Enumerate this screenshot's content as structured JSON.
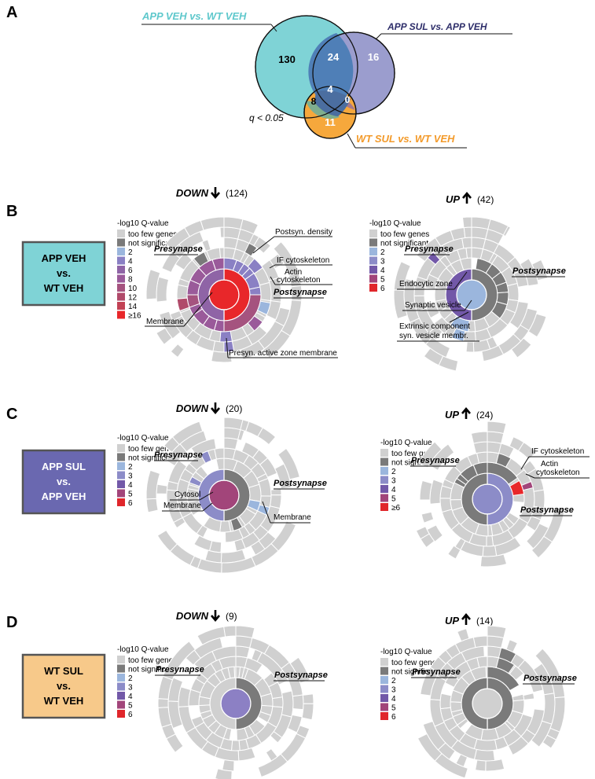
{
  "panels": {
    "a": "A",
    "b": "B",
    "c": "C",
    "d": "D"
  },
  "venn": {
    "labels": {
      "app_veh_wt_veh": "APP VEH vs. WT VEH",
      "app_sul_app_veh": "APP SUL vs. APP VEH",
      "wt_sul_wt_veh": "WT SUL vs. WT VEH"
    },
    "counts": {
      "app_veh_only": "130",
      "app_veh_app_sul": "24",
      "app_sul_only": "16",
      "all_three": "4",
      "app_veh_wt_sul": "8",
      "app_sul_wt_sul": "0",
      "wt_sul_only": "11"
    },
    "threshold": "q < 0.05",
    "colors": {
      "cyan": "#7fd3d6",
      "purple": "#9b9dce",
      "orange": "#f6a83c",
      "ov1": "#4e82b8",
      "ov2": "#7fae8e",
      "ov3": "#a6798a",
      "center": "#4b6ea0"
    }
  },
  "comparisons": {
    "b": "APP VEH\nvs.\nWT VEH",
    "c": "APP SUL\nvs.\nAPP VEH",
    "d": "WT SUL\nvs.\nWT VEH"
  },
  "comparison_colors": {
    "b": "#7fd3d6",
    "c": "#6a68b0",
    "d": "#f7c98a"
  },
  "headers": {
    "down": "DOWN",
    "up": "UP",
    "b_down_n": "(124)",
    "b_up_n": "(42)",
    "c_down_n": "(20)",
    "c_up_n": "(24)",
    "d_down_n": "(9)",
    "d_up_n": "(14)"
  },
  "legend": {
    "title": "-log10 Q-value",
    "too_few": "too few genes",
    "not_sig": "not significant",
    "scale_b_down": [
      [
        "2",
        "#9bb6dd"
      ],
      [
        "4",
        "#8a80c4"
      ],
      [
        "6",
        "#8f64a6"
      ],
      [
        "8",
        "#9a5a9a"
      ],
      [
        "10",
        "#a5537f"
      ],
      [
        "12",
        "#b04a6a"
      ],
      [
        "14",
        "#c24255"
      ],
      [
        "≥16",
        "#e8272a"
      ]
    ],
    "scale_b_up": [
      [
        "2",
        "#9bb6dd"
      ],
      [
        "3",
        "#8c8cc8"
      ],
      [
        "4",
        "#7258a8"
      ],
      [
        "5",
        "#a2457a"
      ],
      [
        "6",
        "#e0262b"
      ]
    ],
    "scale_c_down": [
      [
        "2",
        "#9bb6dd"
      ],
      [
        "3",
        "#8c8cc8"
      ],
      [
        "4",
        "#7258a8"
      ],
      [
        "5",
        "#a2457a"
      ],
      [
        "6",
        "#e0262b"
      ]
    ],
    "scale_c_up": [
      [
        "2",
        "#9bb6dd"
      ],
      [
        "3",
        "#8c8cc8"
      ],
      [
        "4",
        "#7258a8"
      ],
      [
        "5",
        "#a2457a"
      ],
      [
        "≥6",
        "#e0262b"
      ]
    ],
    "scale_d": [
      [
        "2",
        "#9bb6dd"
      ],
      [
        "3",
        "#8c8cc8"
      ],
      [
        "4",
        "#7258a8"
      ],
      [
        "5",
        "#a2457a"
      ],
      [
        "6",
        "#e0262b"
      ]
    ]
  },
  "sunburst_labels": {
    "presynapse": "Presynapse",
    "postsynapse": "Postsynapse",
    "b_down_postsyn_density": "Postsyn. density",
    "b_down_if_cyto": "IF cytoskeleton",
    "b_down_actin1": "Actin",
    "b_down_actin2": "cytoskeleton",
    "b_down_membrane": "Membrane",
    "b_down_active_zone": "Presyn. active zone membrane",
    "b_up_endocytic": "Endocytic zone",
    "b_up_syn_vesicle": "Synaptic vesicle",
    "b_up_extrinsic1": "Extrinsic component",
    "b_up_extrinsic2": "syn. vesicle membr.",
    "c_down_cytosol": "Cytosol",
    "c_down_membrane_left": "Membrane",
    "c_down_membrane_right": "Membrane",
    "c_up_if_cyto": "IF cytoskeleton",
    "c_up_actin1": "Actin",
    "c_up_actin2": "cytoskeleton"
  },
  "palette": {
    "too_few": "#d0d0d0",
    "not_sig": "#7a7a7a",
    "edge": "#ffffff"
  }
}
